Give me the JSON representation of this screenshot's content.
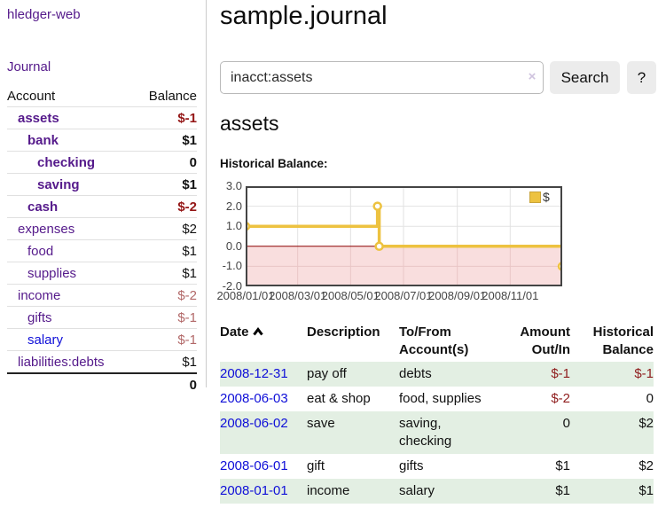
{
  "sidebar": {
    "app_title": "hledger-web",
    "nav": {
      "journal": "Journal"
    },
    "accounts_table": {
      "headers": {
        "account": "Account",
        "balance": "Balance"
      },
      "rows": [
        {
          "name": "assets",
          "balance": "$-1"
        },
        {
          "name": "bank",
          "balance": "$1"
        },
        {
          "name": "checking",
          "balance": "0"
        },
        {
          "name": "saving",
          "balance": "$1"
        },
        {
          "name": "cash",
          "balance": "$-2"
        },
        {
          "name": "expenses",
          "balance": "$2"
        },
        {
          "name": "food",
          "balance": "$1"
        },
        {
          "name": "supplies",
          "balance": "$1"
        },
        {
          "name": "income",
          "balance": "$-2"
        },
        {
          "name": "gifts",
          "balance": "$-1"
        },
        {
          "name": "salary",
          "balance": "$-1"
        },
        {
          "name": "liabilities:debts",
          "balance": "$1"
        }
      ],
      "total": "0"
    }
  },
  "main": {
    "title": "sample.journal",
    "search": {
      "value": "inacct:assets",
      "clear_icon": "×",
      "button_label": "Search",
      "help_label": "?"
    },
    "account_heading": "assets",
    "chart_label": "Historical Balance:",
    "register": {
      "headers": {
        "date": "Date",
        "description": "Description",
        "tofrom_line1": "To/From",
        "tofrom_line2": "Account(s)",
        "amount_line1": "Amount",
        "amount_line2": "Out/In",
        "balance_line1": "Historical",
        "balance_line2": "Balance"
      },
      "rows": [
        {
          "date": "2008-12-31",
          "description": "pay off",
          "accounts": "debts",
          "amount": "$-1",
          "balance": "$-1"
        },
        {
          "date": "2008-06-03",
          "description": "eat & shop",
          "accounts": "food, supplies",
          "amount": "$-2",
          "balance": "0"
        },
        {
          "date": "2008-06-02",
          "description": "save",
          "accounts": "saving, checking",
          "amount": "0",
          "balance": "$2"
        },
        {
          "date": "2008-06-01",
          "description": "gift",
          "accounts": "gifts",
          "amount": "$1",
          "balance": "$2"
        },
        {
          "date": "2008-01-01",
          "description": "income",
          "accounts": "salary",
          "amount": "$1",
          "balance": "$1"
        }
      ]
    }
  },
  "chart_data": {
    "type": "line",
    "step": true,
    "title": "Historical Balance",
    "series": [
      {
        "name": "$",
        "color": "#edc240",
        "points": [
          [
            "2008-01-01",
            1
          ],
          [
            "2008-06-01",
            2
          ],
          [
            "2008-06-03",
            0
          ],
          [
            "2008-12-31",
            -1
          ]
        ]
      }
    ],
    "xlim": [
      "2008-01-01",
      "2008-12-31"
    ],
    "ylim": [
      -2,
      3
    ],
    "x_ticks": [
      "2008/01/01",
      "2008/03/01",
      "2008/05/01",
      "2008/07/01",
      "2008/09/01",
      "2008/11/01"
    ],
    "y_ticks": [
      3.0,
      2.0,
      1.0,
      0.0,
      -1.0,
      -2.0
    ],
    "y_tick_labels": [
      "3.0",
      "2.0",
      "1.0",
      "0.0",
      "-1.0",
      "-2.0"
    ],
    "grid": true,
    "grid_color": "#e2e2e2",
    "grid_color_negative": "#e9c6c6",
    "negative_fill": "#f9dede",
    "zero_line_color": "#8b0000",
    "border_color": "#444444",
    "marker_fill": "#ffffff",
    "legend_position": "top-right"
  },
  "colors": {
    "link_purple": "#551a8b",
    "link_blue": "#0f0fd8",
    "negative_strong": "#941616",
    "negative_soft": "#b26868",
    "row_green": "#e3efe3",
    "series_yellow": "#edc240"
  }
}
